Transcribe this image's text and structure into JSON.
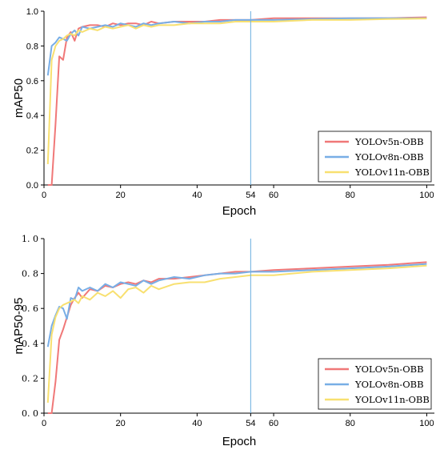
{
  "chart_data": [
    {
      "type": "line",
      "title": "",
      "xlabel": "Epoch",
      "ylabel": "mAP50",
      "xlim": [
        0,
        102
      ],
      "ylim": [
        0,
        1.0
      ],
      "xticks": [
        0,
        20,
        40,
        54,
        60,
        80,
        100
      ],
      "yticks": [
        0.0,
        0.2,
        0.4,
        0.6,
        0.8,
        1.0
      ],
      "ytick_labels": [
        "0.0",
        "0.2",
        "0.4",
        "0.6",
        "0.8",
        "1.0"
      ],
      "vline_x": 54,
      "vline_color": "#6aaee0",
      "grid": false,
      "legend_position": "bottom-right",
      "series": [
        {
          "name": "YOLOv5n-OBB",
          "color": "#f07878",
          "x": [
            1,
            2,
            3,
            4,
            5,
            6,
            7,
            8,
            9,
            10,
            12,
            14,
            16,
            18,
            20,
            22,
            24,
            26,
            28,
            30,
            34,
            38,
            42,
            46,
            50,
            54,
            60,
            70,
            80,
            90,
            100
          ],
          "y": [
            0.0,
            0.0,
            0.35,
            0.74,
            0.72,
            0.85,
            0.88,
            0.83,
            0.9,
            0.91,
            0.92,
            0.92,
            0.91,
            0.93,
            0.92,
            0.93,
            0.93,
            0.92,
            0.94,
            0.93,
            0.94,
            0.94,
            0.94,
            0.95,
            0.95,
            0.95,
            0.96,
            0.96,
            0.96,
            0.96,
            0.965
          ]
        },
        {
          "name": "YOLOv8n-OBB",
          "color": "#78aee6",
          "x": [
            1,
            2,
            3,
            4,
            5,
            6,
            7,
            8,
            9,
            10,
            12,
            14,
            16,
            18,
            20,
            22,
            24,
            26,
            28,
            30,
            34,
            38,
            42,
            46,
            50,
            54,
            60,
            70,
            80,
            90,
            100
          ],
          "y": [
            0.63,
            0.8,
            0.82,
            0.85,
            0.84,
            0.83,
            0.87,
            0.89,
            0.86,
            0.91,
            0.9,
            0.91,
            0.92,
            0.91,
            0.93,
            0.92,
            0.91,
            0.93,
            0.92,
            0.93,
            0.94,
            0.93,
            0.94,
            0.94,
            0.95,
            0.95,
            0.95,
            0.955,
            0.96,
            0.96,
            0.96
          ]
        },
        {
          "name": "YOLOv11n-OBB",
          "color": "#f8e070",
          "x": [
            1,
            2,
            3,
            4,
            5,
            6,
            7,
            8,
            9,
            10,
            12,
            14,
            16,
            18,
            20,
            22,
            24,
            26,
            28,
            30,
            34,
            38,
            42,
            46,
            50,
            54,
            60,
            70,
            80,
            90,
            100
          ],
          "y": [
            0.12,
            0.72,
            0.8,
            0.83,
            0.84,
            0.86,
            0.87,
            0.86,
            0.89,
            0.88,
            0.9,
            0.89,
            0.91,
            0.9,
            0.91,
            0.92,
            0.9,
            0.92,
            0.91,
            0.92,
            0.92,
            0.93,
            0.93,
            0.93,
            0.94,
            0.94,
            0.94,
            0.95,
            0.95,
            0.955,
            0.958
          ]
        }
      ]
    },
    {
      "type": "line",
      "title": "",
      "xlabel": "Epoch",
      "ylabel": "mAP50-95",
      "xlim": [
        0,
        102
      ],
      "ylim": [
        0,
        1.0
      ],
      "xticks": [
        0,
        20,
        40,
        54,
        60,
        80,
        100
      ],
      "yticks": [
        0.0,
        0.2,
        0.4,
        0.6,
        0.8,
        1.0
      ],
      "ytick_labels": [
        "0. 0",
        "0. 2",
        "0. 4",
        "0. 6",
        "0. 8",
        "1. 0"
      ],
      "vline_x": 54,
      "vline_color": "#6aaee0",
      "grid": false,
      "legend_position": "bottom-right",
      "series": [
        {
          "name": "YOLOv5n-OBB",
          "color": "#f07878",
          "x": [
            1,
            2,
            3,
            4,
            5,
            6,
            7,
            8,
            9,
            10,
            12,
            14,
            16,
            18,
            20,
            22,
            24,
            26,
            28,
            30,
            34,
            38,
            42,
            46,
            50,
            54,
            60,
            70,
            80,
            90,
            100
          ],
          "y": [
            0.0,
            0.0,
            0.18,
            0.42,
            0.48,
            0.55,
            0.62,
            0.66,
            0.69,
            0.66,
            0.71,
            0.7,
            0.73,
            0.72,
            0.74,
            0.75,
            0.74,
            0.76,
            0.75,
            0.77,
            0.77,
            0.78,
            0.79,
            0.8,
            0.81,
            0.81,
            0.82,
            0.83,
            0.84,
            0.85,
            0.865
          ]
        },
        {
          "name": "YOLOv8n-OBB",
          "color": "#78aee6",
          "x": [
            1,
            2,
            3,
            4,
            5,
            6,
            7,
            8,
            9,
            10,
            12,
            14,
            16,
            18,
            20,
            22,
            24,
            26,
            28,
            30,
            34,
            38,
            42,
            46,
            50,
            54,
            60,
            70,
            80,
            90,
            100
          ],
          "y": [
            0.38,
            0.5,
            0.56,
            0.61,
            0.6,
            0.54,
            0.66,
            0.65,
            0.72,
            0.7,
            0.72,
            0.7,
            0.74,
            0.72,
            0.75,
            0.74,
            0.73,
            0.76,
            0.74,
            0.76,
            0.78,
            0.77,
            0.79,
            0.8,
            0.8,
            0.81,
            0.81,
            0.82,
            0.83,
            0.84,
            0.855
          ]
        },
        {
          "name": "YOLOv11n-OBB",
          "color": "#f8e070",
          "x": [
            1,
            2,
            3,
            4,
            5,
            6,
            7,
            8,
            9,
            10,
            12,
            14,
            16,
            18,
            20,
            22,
            24,
            26,
            28,
            30,
            34,
            38,
            42,
            46,
            50,
            54,
            60,
            70,
            80,
            90,
            100
          ],
          "y": [
            0.06,
            0.45,
            0.55,
            0.6,
            0.62,
            0.63,
            0.64,
            0.65,
            0.63,
            0.67,
            0.65,
            0.69,
            0.67,
            0.7,
            0.66,
            0.71,
            0.72,
            0.69,
            0.73,
            0.71,
            0.74,
            0.75,
            0.75,
            0.77,
            0.78,
            0.79,
            0.79,
            0.81,
            0.82,
            0.83,
            0.845
          ]
        }
      ]
    }
  ]
}
